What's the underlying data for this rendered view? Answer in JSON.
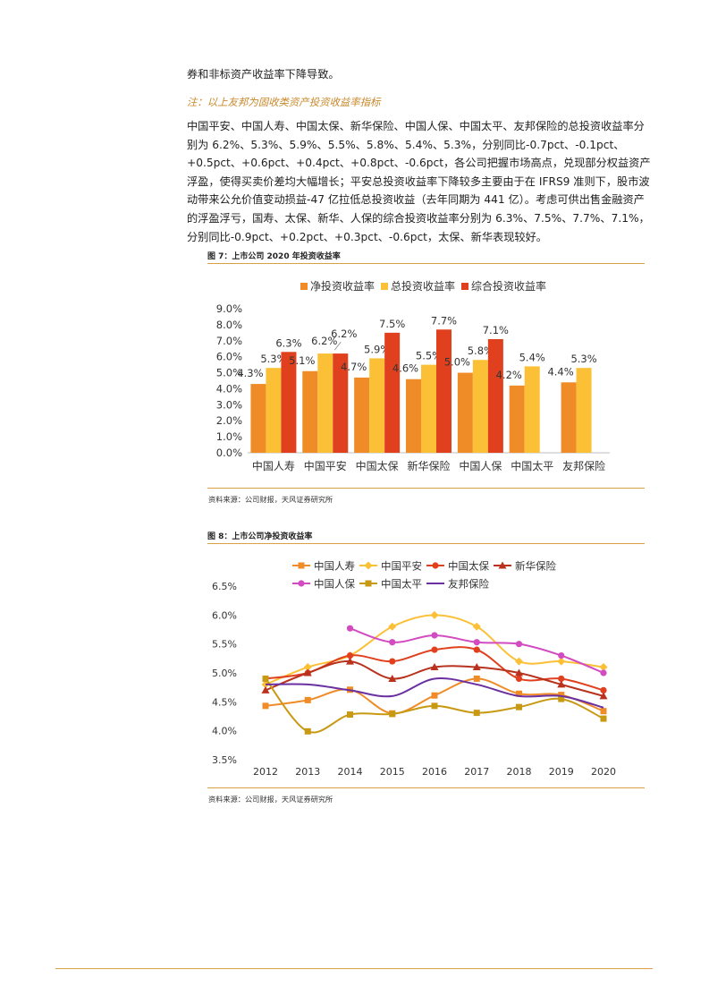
{
  "text": {
    "line0": "券和非标资产收益率下降导致。",
    "note": "注：以上友邦为固收类资产投资收益率指标",
    "para": "中国平安、中国人寿、中国太保、新华保险、中国人保、中国太平、友邦保险的总投资收益率分别为 6.2%、5.3%、5.9%、5.5%、5.8%、5.4%、5.3%，分别同比-0.7pct、-0.1pct、+0.5pct、+0.6pct、+0.4pct、+0.8pct、-0.6pct，各公司把握市场高点，兑现部分权益资产浮盈，使得买卖价差均大幅增长；平安总投资收益率下降较多主要由于在 IFRS9 准则下，股市波动带来公允价值变动损益-47 亿拉低总投资收益（去年同期为 441 亿）。考虑可供出售金融资产的浮盈浮亏，国寿、太保、新华、人保的综合投资收益率分别为 6.3%、7.5%、7.7%、7.1%，分别同比-0.9pct、+0.2pct、+0.3pct、-0.6pct，太保、新华表现较好。"
  },
  "figure7": {
    "title": "图 7：上市公司 2020 年投资收益率",
    "source": "资料来源：公司财报，天风证券研究所"
  },
  "figure8": {
    "title": "图 8：上市公司净投资收益率",
    "source": "资料来源：公司财报，天风证券研究所"
  },
  "chart_data": [
    {
      "type": "bar",
      "categories": [
        "中国人寿",
        "中国平安",
        "中国太保",
        "新华保险",
        "中国人保",
        "中国太平",
        "友邦保险"
      ],
      "series": [
        {
          "name": "净投资收益率",
          "color": "#f08c28",
          "values": [
            4.3,
            5.1,
            4.7,
            4.6,
            5.0,
            4.2,
            4.4
          ],
          "labels": [
            "4.3%",
            "5.1%",
            "4.7%",
            "4.6%",
            "5.0%",
            "4.2%",
            "4.4%"
          ]
        },
        {
          "name": "总投资收益率",
          "color": "#fbc036",
          "values": [
            5.3,
            6.2,
            5.9,
            5.5,
            5.8,
            5.4,
            5.3
          ],
          "labels": [
            "5.3%",
            "6.2%",
            "5.9%",
            "5.5%",
            "5.8%",
            "5.4%",
            "5.3%"
          ]
        },
        {
          "name": "综合投资收益率",
          "color": "#e0401e",
          "values": [
            6.3,
            6.2,
            7.5,
            7.7,
            7.1,
            null,
            null
          ],
          "labels": [
            "6.3%",
            "6.2%",
            "7.5%",
            "7.7%",
            "7.1%",
            "",
            ""
          ]
        }
      ],
      "yticks": [
        "9.0%",
        "8.0%",
        "7.0%",
        "6.0%",
        "5.0%",
        "4.0%",
        "3.0%",
        "2.0%",
        "1.0%",
        "0.0%"
      ],
      "ylim": [
        0,
        9
      ],
      "legend": "top"
    },
    {
      "type": "line",
      "x": [
        "2012",
        "2013",
        "2014",
        "2015",
        "2016",
        "2017",
        "2018",
        "2019",
        "2020"
      ],
      "series": [
        {
          "name": "中国人寿",
          "color": "#f08c28",
          "marker": "square",
          "values": [
            4.43,
            4.53,
            4.71,
            4.3,
            4.61,
            4.9,
            4.64,
            4.62,
            4.34
          ]
        },
        {
          "name": "中国平安",
          "color": "#fbc036",
          "marker": "diamond",
          "values": [
            4.8,
            5.1,
            5.3,
            5.8,
            6.0,
            5.8,
            5.2,
            5.2,
            5.1
          ]
        },
        {
          "name": "中国太保",
          "color": "#e0401e",
          "marker": "circle",
          "values": [
            4.9,
            5.0,
            5.3,
            5.2,
            5.4,
            5.4,
            4.9,
            4.9,
            4.7
          ]
        },
        {
          "name": "新华保险",
          "color": "#b8321e",
          "marker": "triangle",
          "values": [
            4.7,
            5.0,
            5.2,
            4.9,
            5.1,
            5.1,
            5.0,
            4.8,
            4.6
          ]
        },
        {
          "name": "中国人保",
          "color": "#d24bc1",
          "marker": "circle",
          "values": [
            null,
            null,
            5.77,
            5.53,
            5.65,
            5.53,
            5.5,
            5.3,
            5.0
          ]
        },
        {
          "name": "中国太平",
          "color": "#c89a14",
          "marker": "square",
          "values": [
            4.9,
            3.99,
            4.28,
            4.29,
            4.43,
            4.31,
            4.41,
            4.55,
            4.21
          ]
        },
        {
          "name": "友邦保险",
          "color": "#6a2fa0",
          "marker": "none",
          "values": [
            4.8,
            4.8,
            4.7,
            4.6,
            4.9,
            4.8,
            4.6,
            4.6,
            4.4
          ]
        }
      ],
      "yticks": [
        "6.5%",
        "6.0%",
        "5.5%",
        "5.0%",
        "4.5%",
        "4.0%",
        "3.5%"
      ],
      "ylim": [
        3.5,
        6.5
      ],
      "legend": "top"
    }
  ]
}
